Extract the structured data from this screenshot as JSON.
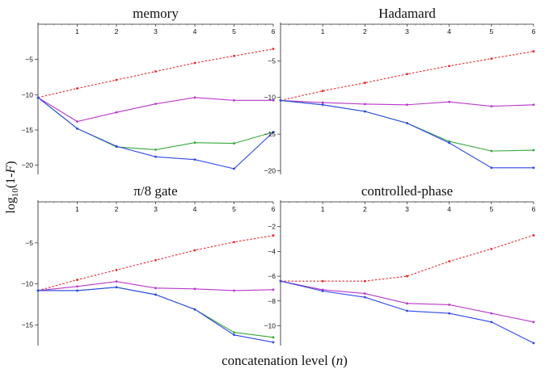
{
  "figure": {
    "ylabel": "log10(1-F)",
    "ylabel_base": "log",
    "ylabel_sub": "10",
    "ylabel_open": "(1-",
    "ylabel_var": "F",
    "ylabel_close": ")",
    "xlabel": "concatenation level (n)",
    "xlabel_text": "concatenation level (",
    "xlabel_var": "n",
    "xlabel_close": ")"
  },
  "colors": {
    "red": "#e8292b",
    "magenta": "#b838c8",
    "green": "#38a83c",
    "blue": "#3048e8"
  },
  "chart_data": [
    {
      "type": "line",
      "title": "memory",
      "x": [
        0,
        1,
        2,
        3,
        4,
        5,
        6
      ],
      "xticks": [
        "1",
        "2",
        "3",
        "4",
        "5",
        "6"
      ],
      "yticks": [
        -5,
        -10,
        -15,
        -20
      ],
      "ylim": [
        -21.3,
        0
      ],
      "series": [
        {
          "color": "red",
          "style": "dashed",
          "values": [
            -10.4,
            -9.1,
            -7.9,
            -6.7,
            -5.5,
            -4.5,
            -3.5
          ]
        },
        {
          "color": "magenta",
          "style": "solid",
          "values": [
            -10.4,
            -13.8,
            -12.5,
            -11.3,
            -10.4,
            -10.8,
            -10.8
          ]
        },
        {
          "color": "green",
          "style": "solid",
          "values": [
            -10.4,
            -14.8,
            -17.4,
            -17.8,
            -16.8,
            -16.9,
            -15.3
          ]
        },
        {
          "color": "blue",
          "style": "solid",
          "values": [
            -10.4,
            -14.8,
            -17.3,
            -18.8,
            -19.2,
            -20.5,
            -15.3
          ]
        }
      ]
    },
    {
      "type": "line",
      "title": "Hadamard",
      "x": [
        0,
        1,
        2,
        3,
        4,
        5,
        6
      ],
      "xticks": [
        "1",
        "2",
        "3",
        "4",
        "5",
        "6"
      ],
      "yticks": [
        -5,
        -10,
        -15,
        -20
      ],
      "ylim": [
        -20.5,
        0
      ],
      "series": [
        {
          "color": "red",
          "style": "dashed",
          "values": [
            -10.4,
            -9.1,
            -8.0,
            -6.8,
            -5.7,
            -4.7,
            -3.7
          ]
        },
        {
          "color": "magenta",
          "style": "solid",
          "values": [
            -10.4,
            -10.7,
            -10.9,
            -11.0,
            -10.6,
            -11.2,
            -11.0
          ]
        },
        {
          "color": "green",
          "style": "solid",
          "values": [
            -10.4,
            -11.0,
            -11.9,
            -13.5,
            -16.0,
            -17.3,
            -17.2
          ]
        },
        {
          "color": "blue",
          "style": "solid",
          "values": [
            -10.4,
            -11.0,
            -11.9,
            -13.5,
            -16.2,
            -19.6,
            -19.6
          ]
        }
      ]
    },
    {
      "type": "line",
      "title": "π/8 gate",
      "x": [
        0,
        1,
        2,
        3,
        4,
        5,
        6
      ],
      "xticks": [
        "1",
        "2",
        "3",
        "4",
        "5",
        "6"
      ],
      "yticks": [
        -5,
        -10,
        -15
      ],
      "ylim": [
        -17.5,
        0
      ],
      "series": [
        {
          "color": "red",
          "style": "dashed",
          "values": [
            -10.8,
            -9.5,
            -8.3,
            -7.1,
            -5.9,
            -4.9,
            -4.1
          ]
        },
        {
          "color": "magenta",
          "style": "solid",
          "values": [
            -10.8,
            -10.3,
            -9.7,
            -10.5,
            -10.6,
            -10.8,
            -10.7
          ]
        },
        {
          "color": "green",
          "style": "solid",
          "values": [
            -10.8,
            -10.8,
            -10.4,
            -11.3,
            -13.1,
            -15.9,
            -16.5
          ]
        },
        {
          "color": "blue",
          "style": "solid",
          "values": [
            -10.8,
            -10.8,
            -10.4,
            -11.3,
            -13.1,
            -16.2,
            -17.1
          ]
        }
      ]
    },
    {
      "type": "line",
      "title": "controlled-phase",
      "x": [
        0,
        1,
        2,
        3,
        4,
        5,
        6
      ],
      "xticks": [
        "1",
        "2",
        "3",
        "4",
        "5",
        "6"
      ],
      "yticks": [
        -2,
        -4,
        -6,
        -8,
        -10
      ],
      "ylim": [
        -11.6,
        0
      ],
      "series": [
        {
          "color": "red",
          "style": "dashed",
          "values": [
            -6.4,
            -6.4,
            -6.4,
            -6.0,
            -4.8,
            -3.8,
            -2.7
          ]
        },
        {
          "color": "magenta",
          "style": "solid",
          "values": [
            -6.4,
            -7.1,
            -7.4,
            -8.2,
            -8.3,
            -9.0,
            -9.7
          ]
        },
        {
          "color": "blue",
          "style": "solid",
          "values": [
            -6.4,
            -7.2,
            -7.7,
            -8.8,
            -9.0,
            -9.7,
            -11.4
          ]
        }
      ]
    }
  ]
}
